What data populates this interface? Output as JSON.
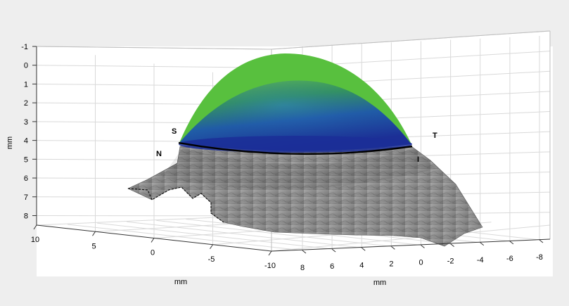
{
  "chart_data": {
    "type": "surface3d",
    "title": "",
    "z_axis": {
      "label": "mm",
      "ticks": [
        -1,
        0,
        1,
        2,
        3,
        4,
        5,
        6,
        7,
        8
      ],
      "range": [
        -1,
        9
      ],
      "reversed": true
    },
    "y_axis": {
      "label": "mm",
      "ticks": [
        10,
        5,
        0,
        -5,
        -10
      ],
      "range": [
        -10,
        10
      ]
    },
    "x_axis": {
      "label": "mm",
      "ticks": [
        8,
        6,
        4,
        2,
        0,
        -2,
        -4,
        -6,
        -8
      ],
      "range": [
        -8,
        8
      ]
    },
    "surfaces": [
      {
        "name": "",
        "kind": "dome",
        "apex_depth": 0,
        "rim_depth": 4.2,
        "color_top": "#5cc040",
        "color_bottom": "#1f3fa0"
      },
      {
        "name": "",
        "kind": "textured-base",
        "color": "#8c8c8c"
      }
    ],
    "rim_depth": 4.2,
    "markers": [
      "S",
      "T",
      "N",
      "I"
    ],
    "grid": true
  }
}
